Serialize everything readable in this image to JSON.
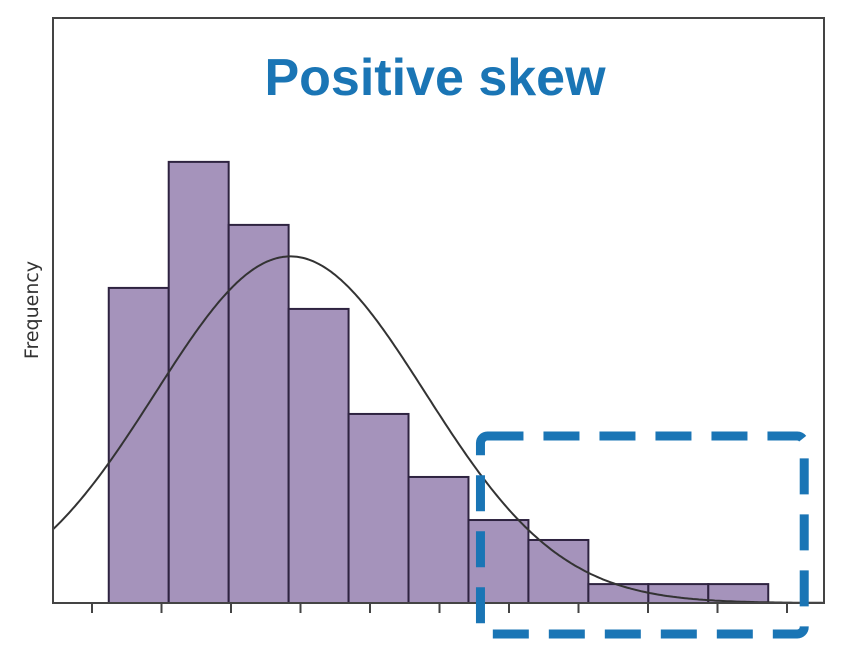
{
  "chart_data": {
    "type": "bar",
    "subtype": "histogram",
    "title": "Positive skew",
    "xlabel": "",
    "ylabel": "Frequency",
    "bins": [
      [
        0,
        1
      ],
      [
        1,
        2
      ],
      [
        2,
        3
      ],
      [
        3,
        4
      ],
      [
        4,
        5
      ],
      [
        5,
        6
      ],
      [
        6,
        7
      ],
      [
        7,
        8
      ],
      [
        8,
        9
      ],
      [
        9,
        10
      ],
      [
        10,
        11
      ]
    ],
    "values": [
      30,
      42,
      36,
      28,
      18,
      12,
      7.9,
      6,
      1.8,
      1.8,
      1.8
    ],
    "xlim": [
      -0.93,
      11.93
    ],
    "ylim": [
      0,
      55.7
    ],
    "x_tick_count": 11,
    "x_tick_labels_shown": false,
    "y_ticks_shown": false,
    "grid": false,
    "normal_curve": {
      "mean": 3.03,
      "sd": 2.25,
      "peak": 33
    },
    "highlight_box": {
      "x_range": [
        6.2,
        11.6
      ],
      "label": ""
    },
    "colors": {
      "bar_fill": "#a593bb",
      "bar_edge": "#2e2340",
      "curve": "#333333",
      "title": "#1a75b5",
      "highlight": "#1a75b5",
      "frame": "#444444"
    }
  }
}
